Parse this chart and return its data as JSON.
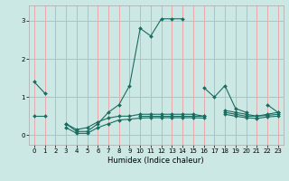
{
  "title": "",
  "xlabel": "Humidex (Indice chaleur)",
  "bg_color": "#cce8e4",
  "grid_color": "#e8aaaa",
  "line_color": "#1a6b60",
  "xlim": [
    -0.5,
    23.5
  ],
  "ylim": [
    -0.25,
    3.4
  ],
  "xticks": [
    0,
    1,
    2,
    3,
    4,
    5,
    6,
    7,
    8,
    9,
    10,
    11,
    12,
    13,
    14,
    15,
    16,
    17,
    18,
    19,
    20,
    21,
    22,
    23
  ],
  "yticks": [
    0,
    1,
    2,
    3
  ],
  "series": [
    [
      1.4,
      1.1,
      null,
      0.3,
      0.1,
      0.1,
      0.3,
      0.6,
      0.8,
      1.3,
      2.8,
      2.6,
      3.05,
      3.05,
      3.05,
      null,
      1.25,
      1.0,
      1.3,
      0.7,
      0.6,
      null,
      0.8,
      0.6
    ],
    [
      0.5,
      0.5,
      null,
      0.3,
      0.15,
      0.2,
      0.35,
      0.45,
      0.5,
      0.5,
      0.55,
      0.55,
      0.55,
      0.55,
      0.55,
      0.55,
      0.5,
      null,
      0.65,
      0.6,
      0.55,
      0.5,
      0.55,
      0.6
    ],
    [
      null,
      null,
      null,
      0.2,
      0.05,
      0.05,
      0.2,
      0.3,
      0.4,
      0.42,
      0.45,
      0.46,
      0.46,
      0.46,
      0.46,
      0.46,
      0.45,
      null,
      0.55,
      0.5,
      0.46,
      0.44,
      0.48,
      0.5
    ],
    [
      null,
      null,
      null,
      null,
      null,
      null,
      null,
      null,
      null,
      null,
      0.5,
      0.5,
      0.5,
      0.5,
      0.5,
      0.5,
      0.5,
      null,
      0.6,
      0.55,
      0.5,
      0.5,
      0.52,
      0.55
    ]
  ]
}
